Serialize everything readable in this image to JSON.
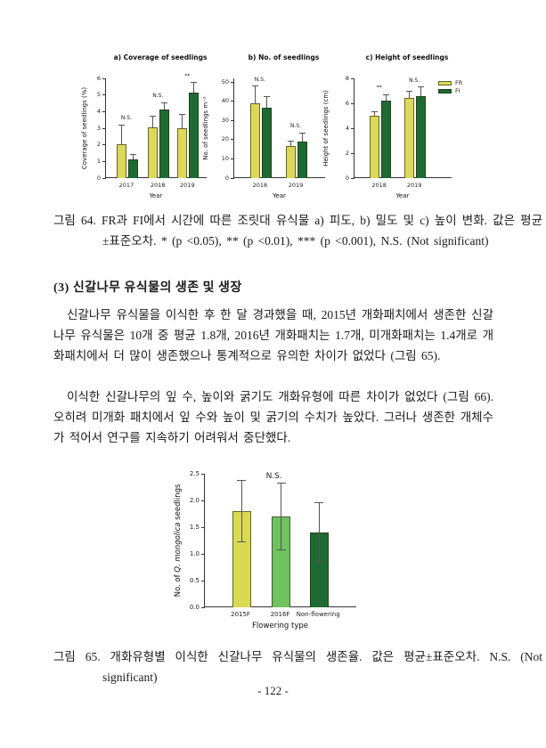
{
  "figure64": {
    "caption": "그림 64. FR과 FI에서 시간에 따른 조릿대 유식물 a) 피도, b) 밀도 및 c) 높이 변화. 값은 평균±표준오차. * (p <0.05), ** (p <0.01), *** (p <0.001), N.S. (Not significant)"
  },
  "section": {
    "heading": "(3) 신갈나무 유식물의 생존 및 생장",
    "paragraph1": "신갈나무 유식물을 이식한 후 한 달 경과했을 때, 2015년 개화패치에서 생존한 신갈나무 유식물은 10개 중 평균 1.8개, 2016년 개화패치는 1.7개, 미개화패치는 1.4개로 개화패치에서 더 많이 생존했으나 통계적으로 유의한 차이가 없었다 (그림 65).",
    "paragraph2": "이식한 신갈나무의 잎 수, 높이와 굵기도 개화유형에 따른 차이가 없었다 (그림 66). 오히려 미개화 패치에서 잎 수와 높이 및 굵기의 수치가 높았다. 그러나 생존한 개체수가 적어서 연구를 지속하기 어려워서 중단했다."
  },
  "figure65": {
    "caption": "그림 65. 개화유형별 이식한 신갈나무 유식물의 생존율. 값은 평균±표준오차. N.S. (Not significant)"
  },
  "page": {
    "number": "- 122 -"
  },
  "colors": {
    "fr": "#dcd85a",
    "fi": "#1d6b33",
    "f2015": "#d9da52",
    "f2016": "#70c25e",
    "nonflowering": "#1d6b32"
  },
  "chart_data": [
    {
      "type": "bar",
      "id": "coverage",
      "title": "a) Coverage of seedlings",
      "xlabel": "Year",
      "ylabel": "Coverage of seedlings (%)",
      "ylim": [
        0,
        6
      ],
      "yticks": [
        0,
        1,
        2,
        3,
        4,
        5,
        6
      ],
      "ytick_labels": [
        "0",
        "1",
        "2",
        "3",
        "4",
        "5",
        "6"
      ],
      "categories": [
        "2017",
        "2018",
        "2019"
      ],
      "series": [
        {
          "name": "FR",
          "color": "#dcd85a",
          "values": [
            2.05,
            3.05,
            3.0
          ],
          "errors": [
            1.15,
            0.7,
            0.85
          ]
        },
        {
          "name": "FI",
          "color": "#1d6b33",
          "values": [
            1.1,
            4.15,
            5.15
          ],
          "errors": [
            0.3,
            0.4,
            0.6
          ]
        }
      ],
      "sig_labels": [
        "N.S.",
        "N.S.",
        "**"
      ],
      "grid": false
    },
    {
      "type": "bar",
      "id": "density",
      "title": "b) No. of seedlings",
      "xlabel": "Year",
      "ylabel": "No. of seedlings m⁻²",
      "ylim": [
        0,
        52
      ],
      "yticks": [
        0,
        10,
        20,
        30,
        40,
        50
      ],
      "ytick_labels": [
        "0",
        "10",
        "20",
        "30",
        "40",
        "50"
      ],
      "categories": [
        "2018",
        "2019"
      ],
      "series": [
        {
          "name": "FR",
          "color": "#dcd85a",
          "values": [
            39,
            16.5
          ],
          "errors": [
            9,
            3
          ]
        },
        {
          "name": "FI",
          "color": "#1d6b33",
          "values": [
            36.5,
            19
          ],
          "errors": [
            6,
            4.5
          ]
        }
      ],
      "sig_labels": [
        "N.S.",
        "N.S."
      ],
      "grid": false
    },
    {
      "type": "bar",
      "id": "height",
      "title": "c) Height of seedlings",
      "xlabel": "Year",
      "ylabel": "Height of seedlings (cm)",
      "ylim": [
        0,
        8
      ],
      "yticks": [
        0,
        2,
        4,
        6,
        8
      ],
      "ytick_labels": [
        "0",
        "2",
        "4",
        "6",
        "8"
      ],
      "categories": [
        "2018",
        "2019"
      ],
      "series": [
        {
          "name": "FR",
          "color": "#dcd85a",
          "values": [
            5.0,
            6.4
          ],
          "errors": [
            0.35,
            0.6
          ]
        },
        {
          "name": "FI",
          "color": "#1d6b33",
          "values": [
            6.2,
            6.6
          ],
          "errors": [
            0.5,
            0.7
          ]
        }
      ],
      "sig_labels": [
        "**",
        "N.S."
      ],
      "legend": [
        "FR",
        "FI"
      ],
      "legend_position": "top-right",
      "grid": false
    },
    {
      "type": "bar",
      "id": "survival",
      "title": "",
      "annotation": "N.S.",
      "xlabel": "Flowering type",
      "ylabel": "No. of Q. mongolica seedlings",
      "ylabel_parts": [
        [
          "No. of ",
          0
        ],
        [
          "Q. mongolica",
          1
        ],
        [
          " seedlings",
          0
        ]
      ],
      "ylim": [
        0,
        2.5
      ],
      "yticks": [
        0,
        0.5,
        1,
        1.5,
        2,
        2.5
      ],
      "ytick_labels": [
        "0.0",
        "0.5",
        "1.0",
        "1.5",
        "2.0",
        "2.5"
      ],
      "categories": [
        "2015F",
        "2016F",
        "Non-flowering"
      ],
      "series": [
        {
          "name": "No. of Q. mongolica seedlings",
          "colors": [
            "#d9da52",
            "#70c25e",
            "#1d6b32"
          ],
          "values": [
            1.8,
            1.7,
            1.4
          ],
          "errors": [
            0.58,
            0.62,
            0.56
          ]
        }
      ],
      "err_both": true,
      "grid": false
    }
  ]
}
